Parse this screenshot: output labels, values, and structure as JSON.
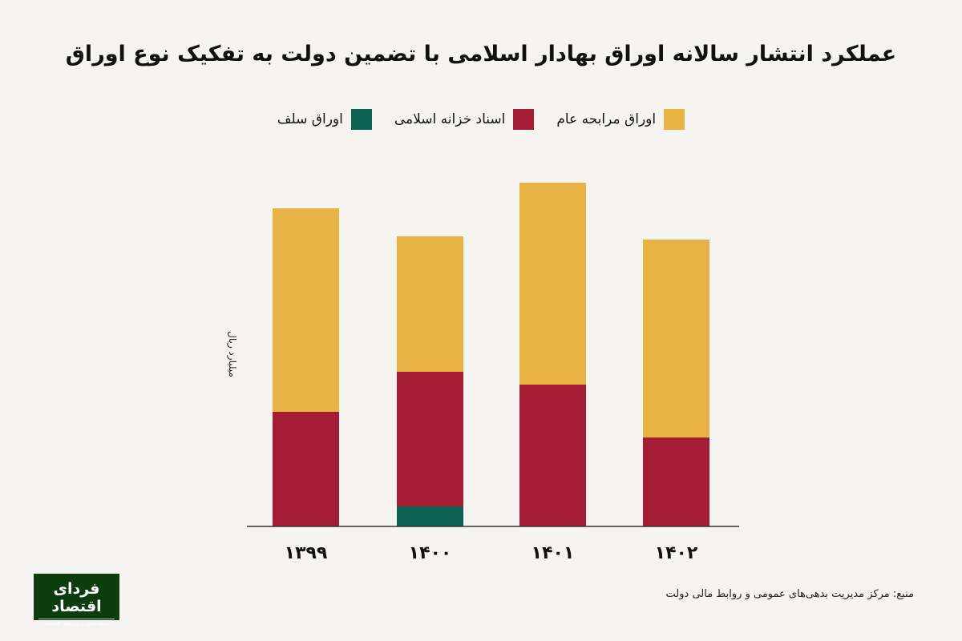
{
  "chart_data": {
    "type": "bar",
    "stacked": true,
    "title": "عملکرد انتشار سالانه اوراق بهادار اسلامی با تضمین دولت به تفکیک نوع اوراق",
    "xlabel": "",
    "ylabel": "میلیارد ریال",
    "categories": [
      "۱۳۹۹",
      "۱۴۰۰",
      "۱۴۰۱",
      "۱۴۰۲"
    ],
    "series": [
      {
        "name": "اوراق سلف",
        "color": "#0b6150",
        "values": [
          0,
          25,
          0,
          0
        ]
      },
      {
        "name": "اسناد خزانه اسلامی",
        "color": "#a51c35",
        "values": [
          143,
          168,
          177,
          111
        ]
      },
      {
        "name": "اوراق مرابحه عام",
        "color": "#e8b343",
        "values": [
          254,
          169,
          252,
          247
        ]
      }
    ],
    "ylim": [
      0,
      430
    ],
    "grid": false,
    "legend_placement": "top",
    "note": "relative values estimated; no y-axis ticks shown"
  },
  "source": "منبع: مرکز مدیریت بدهی‌های عمومی و روابط مالی دولت",
  "logo": {
    "name": "فردای اقتصاد",
    "tagline": "رسانه تصویری روندهای اقتصادی"
  }
}
